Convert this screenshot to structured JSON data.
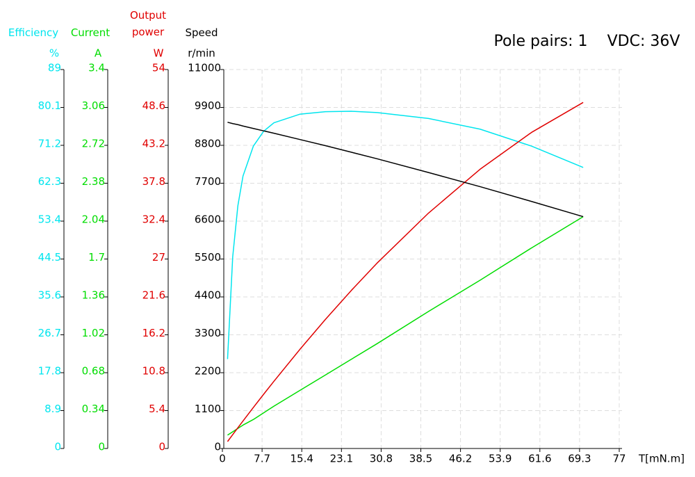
{
  "chart_data": {
    "type": "line",
    "annotations": [
      "Pole pairs: 1",
      "VDC: 36V"
    ],
    "x_label": "T[mN.m]",
    "xlim": [
      0,
      77
    ],
    "xticks": [
      0,
      7.7,
      15.4,
      23.1,
      30.8,
      38.5,
      46.2,
      53.9,
      61.6,
      69.3,
      77
    ],
    "grid": true,
    "x": [
      1,
      2,
      3,
      4,
      6,
      8,
      10,
      15,
      20,
      25,
      30,
      40,
      50,
      60,
      70
    ],
    "axes": [
      {
        "title": "Efficiency",
        "unit": "%",
        "color": "#00e5ee",
        "ylim": [
          0,
          89
        ],
        "yticks": [
          0,
          8.9,
          17.8,
          26.7,
          35.6,
          44.5,
          53.4,
          62.3,
          71.2,
          80.1,
          89
        ],
        "values": [
          21,
          45,
          57,
          64,
          71,
          74.5,
          76.5,
          78.5,
          79.1,
          79.2,
          78.9,
          77.5,
          75,
          71,
          66
        ]
      },
      {
        "title": "Current",
        "unit": "A",
        "color": "#00dd00",
        "ylim": [
          0,
          3.4
        ],
        "yticks": [
          0,
          0.34,
          0.68,
          1.02,
          1.36,
          1.7,
          2.04,
          2.38,
          2.72,
          3.06,
          3.4
        ],
        "values": [
          0.12,
          0.15,
          0.18,
          0.21,
          0.26,
          0.32,
          0.38,
          0.52,
          0.66,
          0.8,
          0.94,
          1.23,
          1.51,
          1.8,
          2.08
        ]
      },
      {
        "title": "Output power",
        "unit": "W",
        "color": "#e00000",
        "ylim": [
          0,
          54
        ],
        "yticks": [
          0,
          5.4,
          10.8,
          16.2,
          21.6,
          27,
          32.4,
          37.8,
          43.2,
          48.6,
          54
        ],
        "values": [
          0.99,
          1.98,
          2.95,
          3.92,
          5.84,
          7.73,
          9.58,
          14.09,
          18.4,
          22.51,
          26.41,
          33.55,
          39.79,
          45.05,
          49.31
        ]
      },
      {
        "title": "Speed",
        "unit": "r/min",
        "color": "#000000",
        "ylim": [
          0,
          11000
        ],
        "yticks": [
          0,
          1100,
          2200,
          3300,
          4400,
          5500,
          6600,
          7700,
          8800,
          9900,
          11000
        ],
        "values": [
          9470,
          9430,
          9400,
          9360,
          9290,
          9220,
          9150,
          8970,
          8790,
          8600,
          8410,
          8010,
          7600,
          7170,
          6730
        ]
      }
    ]
  }
}
